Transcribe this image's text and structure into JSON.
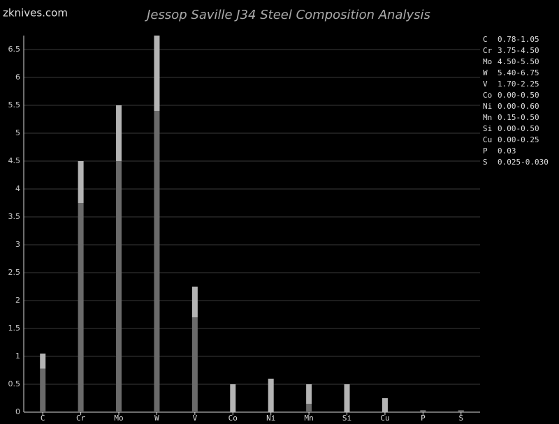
{
  "chart_data": {
    "type": "rangebar",
    "title": "Jessop Saville J34 Steel Composition Analysis",
    "watermark": "zknives.com",
    "categories": [
      "C",
      "Cr",
      "Mo",
      "W",
      "V",
      "Co",
      "Ni",
      "Mn",
      "Si",
      "Cu",
      "P",
      "S"
    ],
    "low": [
      0.78,
      3.75,
      4.5,
      5.4,
      1.7,
      0,
      0,
      0.15,
      0,
      0,
      0.03,
      0.025
    ],
    "high": [
      1.05,
      4.5,
      5.5,
      6.75,
      2.25,
      0.5,
      0.6,
      0.5,
      0.5,
      0.25,
      0.03,
      0.03
    ],
    "range_labels": [
      "0.78-1.05",
      "3.75-4.50",
      "4.50-5.50",
      "5.40-6.75",
      "1.70-2.25",
      "0.00-0.50",
      "0.00-0.60",
      "0.15-0.50",
      "0.00-0.50",
      "0.00-0.25",
      "0.03",
      "0.025-0.030"
    ],
    "low_color": "#6a6a6a",
    "high_color": "#b4b4b4",
    "ylim": [
      0,
      6.75
    ],
    "yticks": [
      0,
      0.5,
      1,
      1.5,
      2,
      2.5,
      3,
      3.5,
      4,
      4.5,
      5,
      5.5,
      6,
      6.5
    ],
    "grid": true
  }
}
